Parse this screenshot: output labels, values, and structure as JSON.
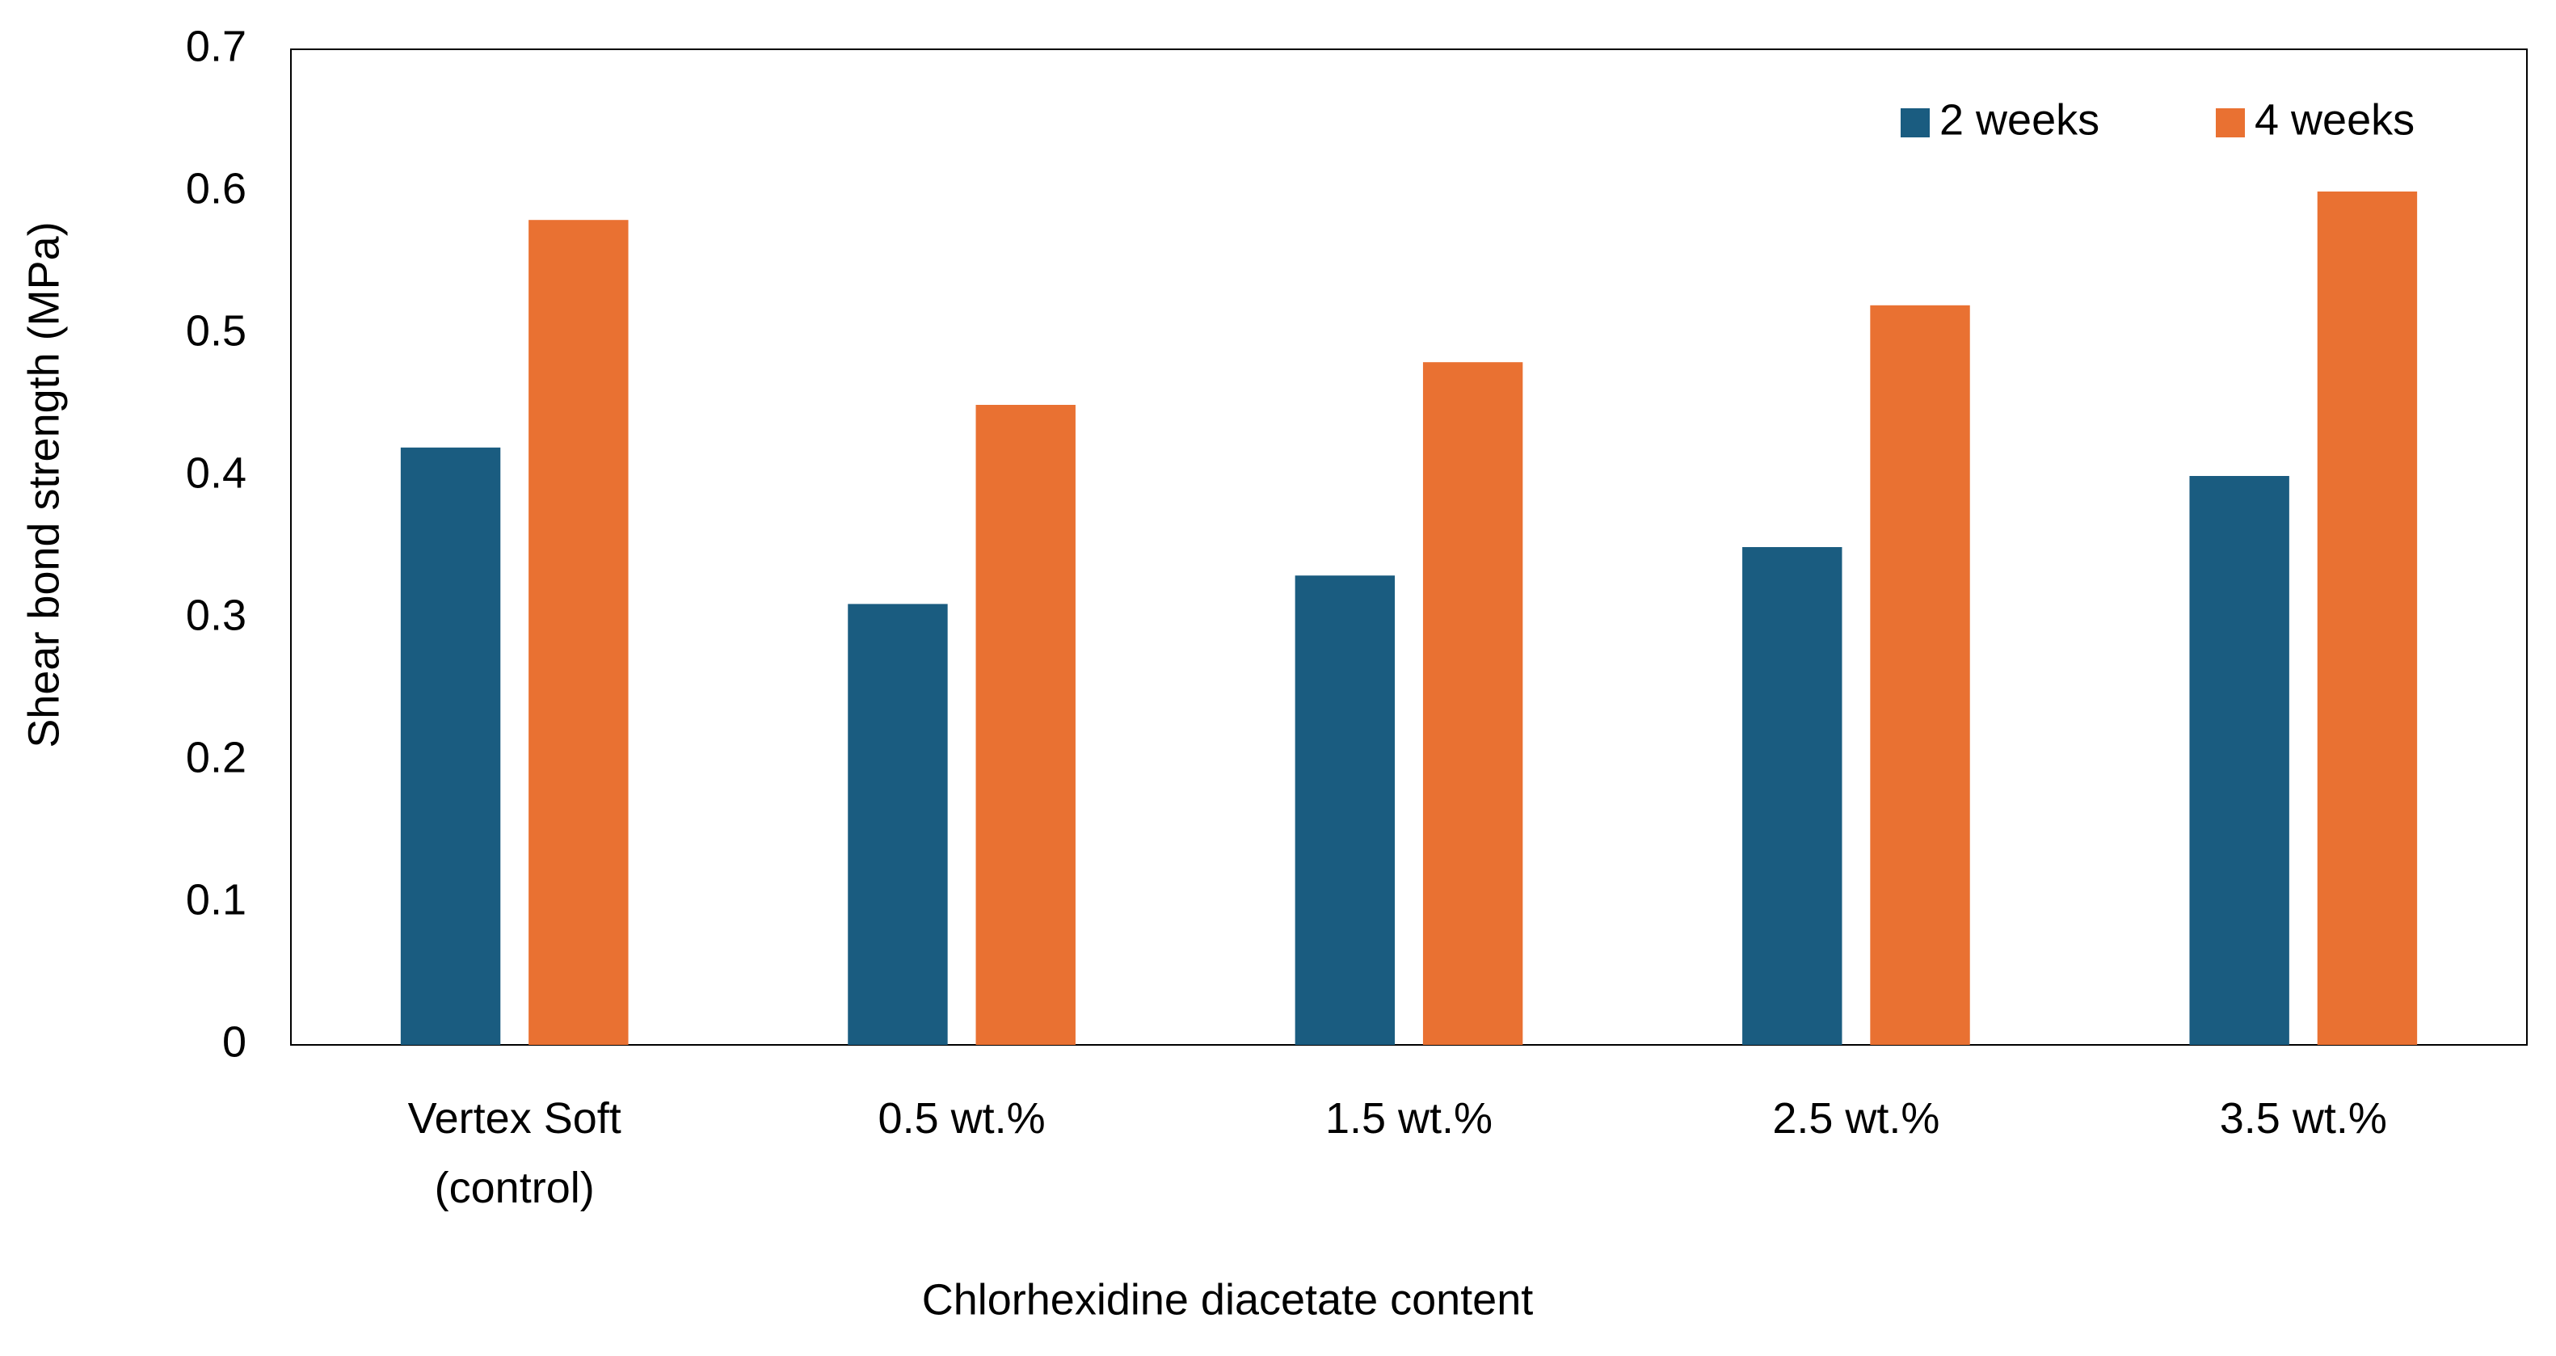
{
  "chart_data": {
    "type": "bar",
    "xlabel": "Chlorhexidine diacetate content",
    "ylabel": "Shear bond strength  (MPa)",
    "categories": [
      "Vertex Soft (control)",
      "0.5 wt.%",
      "1.5 wt.%",
      "2.5 wt.%",
      "3.5 wt.%"
    ],
    "series": [
      {
        "name": "2 weeks",
        "color": "#1a5c80",
        "values": [
          0.42,
          0.31,
          0.33,
          0.35,
          0.4
        ]
      },
      {
        "name": "4 weeks",
        "color": "#e97132",
        "values": [
          0.58,
          0.45,
          0.48,
          0.52,
          0.6
        ]
      }
    ],
    "ylim": [
      0,
      0.7
    ],
    "yticks": [
      0,
      0.1,
      0.2,
      0.3,
      0.4,
      0.5,
      0.6,
      0.7
    ],
    "grid": false,
    "legend": "top-right"
  }
}
